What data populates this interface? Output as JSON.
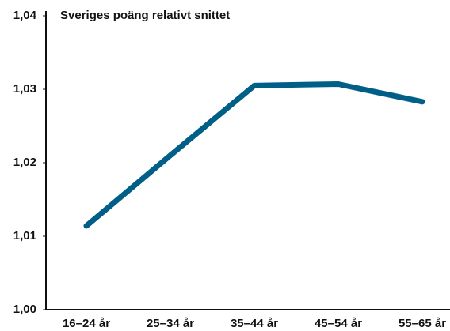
{
  "chart_data": {
    "type": "line",
    "title": "Sveriges poäng relativt snittet",
    "categories": [
      "16–24 år",
      "25–34 år",
      "35–44 år",
      "45–54 år",
      "55–65 år"
    ],
    "series": [
      {
        "name": "Sverige",
        "color": "#005f87",
        "values": [
          1.0114,
          1.021,
          1.0305,
          1.0307,
          1.0283
        ]
      }
    ],
    "ylim": [
      1.0,
      1.04
    ],
    "yticks": [
      {
        "value": 1.0,
        "label": "1,00"
      },
      {
        "value": 1.01,
        "label": "1,01"
      },
      {
        "value": 1.02,
        "label": "1,02"
      },
      {
        "value": 1.03,
        "label": "1,03"
      },
      {
        "value": 1.04,
        "label": "1,04"
      }
    ],
    "grid": false
  }
}
